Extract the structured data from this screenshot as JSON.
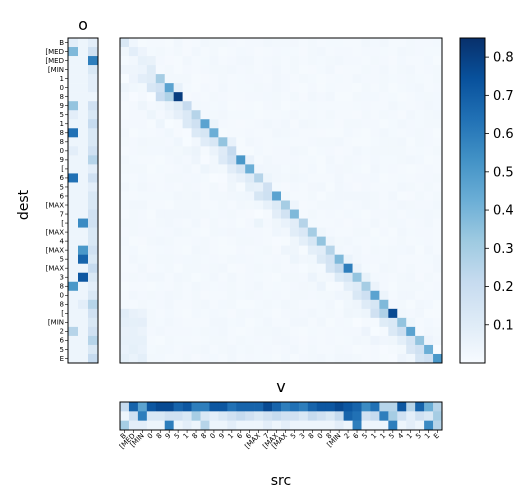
{
  "chart_data": [
    {
      "type": "heatmap",
      "panel": "o",
      "title": "o",
      "ylabel": "dest",
      "columns": 3,
      "rows": 36,
      "colormap": "Blues",
      "column_intensity": [
        [
          0.1,
          0.45,
          0.05,
          0.05,
          0.05,
          0.05,
          0.05,
          0.4,
          0.1,
          0.05,
          0.75,
          0.05,
          0.1,
          0.05,
          0.05,
          0.75,
          0.05,
          0.05,
          0.05,
          0.05,
          0.05,
          0.05,
          0.05,
          0.05,
          0.05,
          0.05,
          0.05,
          0.6,
          0.05,
          0.05,
          0.05,
          0.05,
          0.3,
          0.05,
          0.05,
          0.05
        ],
        [
          0.05,
          0.05,
          0.05,
          0.05,
          0.05,
          0.05,
          0.05,
          0.05,
          0.05,
          0.05,
          0.05,
          0.05,
          0.05,
          0.05,
          0.05,
          0.05,
          0.05,
          0.05,
          0.05,
          0.05,
          0.65,
          0.05,
          0.05,
          0.6,
          0.8,
          0.05,
          0.85,
          0.05,
          0.05,
          0.1,
          0.05,
          0.05,
          0.05,
          0.05,
          0.05,
          0.05
        ],
        [
          0.1,
          0.2,
          0.7,
          0.15,
          0.1,
          0.1,
          0.05,
          0.2,
          0.15,
          0.25,
          0.15,
          0.15,
          0.2,
          0.3,
          0.1,
          0.2,
          0.1,
          0.15,
          0.15,
          0.2,
          0.2,
          0.15,
          0.15,
          0.2,
          0.15,
          0.25,
          0.15,
          0.1,
          0.15,
          0.3,
          0.2,
          0.15,
          0.2,
          0.3,
          0.15,
          0.25
        ]
      ]
    },
    {
      "type": "heatmap",
      "panel": "attention",
      "xlabel": "src",
      "ylabel": "dest",
      "rows": 36,
      "columns": 36,
      "colormap": "Blues",
      "colorbar": {
        "min": 0,
        "max": 0.85,
        "ticks": [
          "0.1",
          "0.2",
          "0.3",
          "0.4",
          "0.5",
          "0.6",
          "0.7",
          "0.8"
        ]
      },
      "dominant_diagonal": true
    },
    {
      "type": "heatmap",
      "panel": "v",
      "title": "v",
      "rows": 3,
      "columns": 36,
      "colormap": "Blues",
      "row_intensity": [
        [
          0.25,
          0.8,
          0.55,
          0.85,
          0.9,
          0.9,
          0.8,
          0.85,
          0.7,
          0.7,
          0.85,
          0.85,
          0.75,
          0.8,
          0.8,
          0.8,
          0.9,
          0.8,
          0.7,
          0.75,
          0.7,
          0.8,
          0.85,
          0.85,
          0.9,
          0.85,
          0.8,
          0.65,
          0.75,
          0.3,
          0.3,
          0.85,
          0.3,
          0.8,
          0.5,
          0.3
        ],
        [
          0.05,
          0.2,
          0.7,
          0.15,
          0.15,
          0.2,
          0.2,
          0.15,
          0.35,
          0.15,
          0.1,
          0.15,
          0.2,
          0.25,
          0.2,
          0.15,
          0.2,
          0.25,
          0.2,
          0.2,
          0.15,
          0.25,
          0.2,
          0.15,
          0.25,
          0.8,
          0.75,
          0.2,
          0.25,
          0.7,
          0.35,
          0.2,
          0.1,
          0.2,
          0.15,
          0.35
        ],
        [
          0.35,
          0.1,
          0.1,
          0.05,
          0.05,
          0.7,
          0.05,
          0.1,
          0.05,
          0.3,
          0.05,
          0.05,
          0.1,
          0.05,
          0.05,
          0.05,
          0.1,
          0.05,
          0.1,
          0.05,
          0.05,
          0.05,
          0.05,
          0.05,
          0.1,
          0.05,
          0.7,
          0.05,
          0.05,
          0.05,
          0.7,
          0.05,
          0.1,
          0.05,
          0.65,
          0.3
        ]
      ]
    }
  ],
  "dest_tick_labels": [
    "B",
    "[MED",
    "[MED",
    "[MIN",
    "1",
    "0",
    "8",
    "9",
    "5",
    "1",
    "8",
    "8",
    "0",
    "9",
    "[",
    "6",
    "5",
    "6",
    "[MAX",
    "7",
    "[",
    "[MAX",
    "4",
    "[MAX",
    "5",
    "[MAX",
    "3",
    "8",
    "0",
    "8",
    "[",
    "[MIN",
    "2",
    "6",
    "5",
    "E"
  ],
  "src_tick_labels": [
    "B",
    "[MED",
    "[MIN",
    "0",
    "8",
    "9",
    "5",
    "1",
    "8",
    "8",
    "0",
    "9",
    "1",
    "6",
    "6",
    "[MAX",
    "7",
    "[MAX",
    "[MAX",
    "5",
    "3",
    "8",
    "0",
    "8",
    "[MIN",
    "2",
    "6",
    "5",
    "1",
    "1",
    "5",
    "4",
    "1",
    "5",
    "1",
    "E"
  ]
}
